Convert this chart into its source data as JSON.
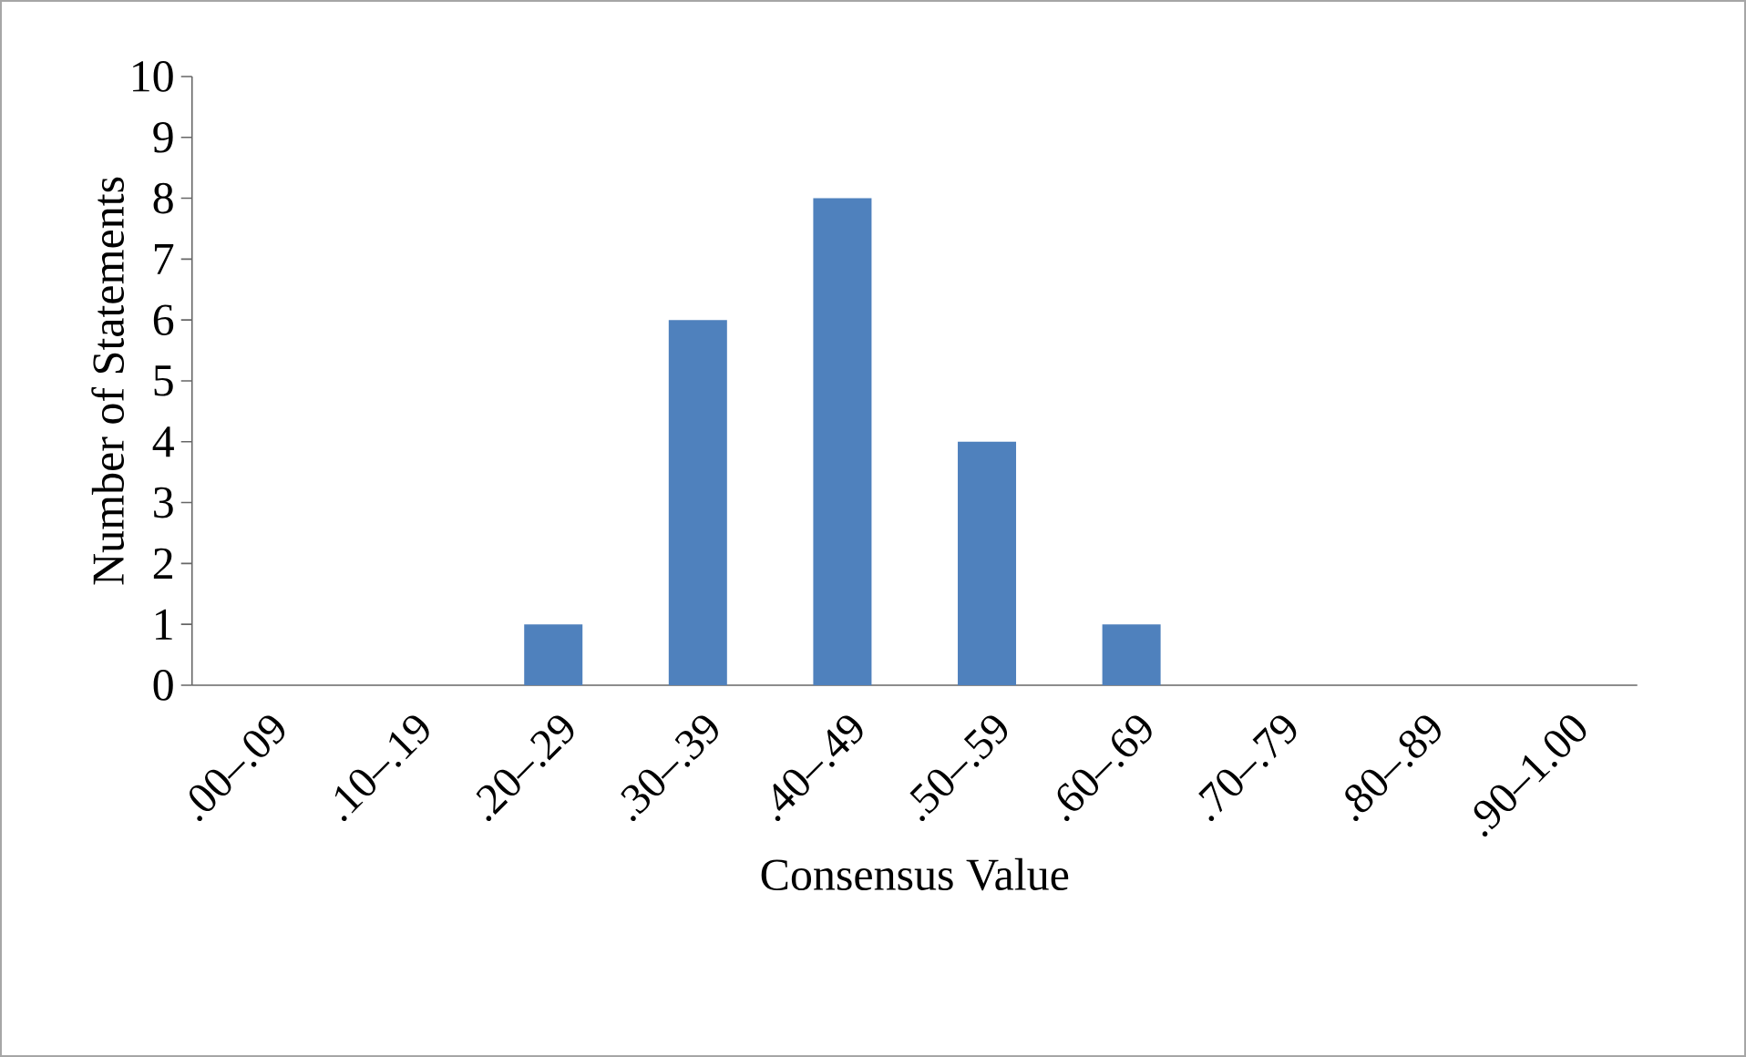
{
  "chart_data": {
    "type": "bar",
    "xlabel": "Consensus Value",
    "ylabel": "Number of Statements",
    "categories": [
      ".00–.09",
      ".10–.19",
      ".20–.29",
      ".30–.39",
      ".40–.49",
      ".50–.59",
      ".60–.69",
      ".70–.79",
      ".80–.89",
      ".90–1.00"
    ],
    "values": [
      0,
      0,
      1,
      6,
      8,
      4,
      1,
      0,
      0,
      0
    ],
    "color": "#4f81bd",
    "ylim": [
      0,
      10
    ],
    "yticks": [
      0,
      1,
      2,
      3,
      4,
      5,
      6,
      7,
      8,
      9,
      10
    ]
  }
}
